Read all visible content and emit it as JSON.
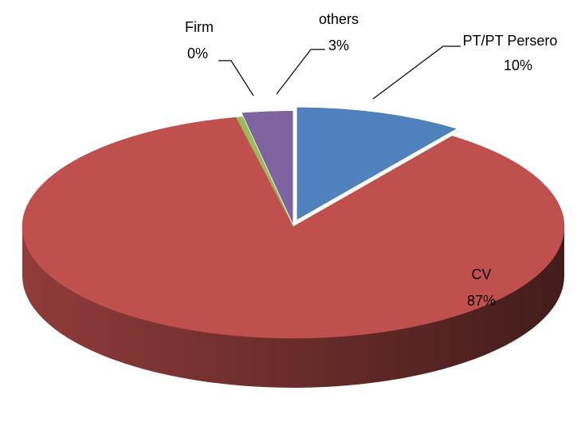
{
  "chart_data": {
    "type": "pie",
    "view": "3d",
    "categories": [
      "PT/PT Persero",
      "CV",
      "Firm",
      "others"
    ],
    "values": [
      10,
      87,
      0.4,
      3
    ],
    "value_labels": [
      "10%",
      "87%",
      "0%",
      "3%"
    ],
    "colors": [
      "#4f81bd",
      "#c0504d",
      "#9bbb59",
      "#8064a2"
    ]
  }
}
